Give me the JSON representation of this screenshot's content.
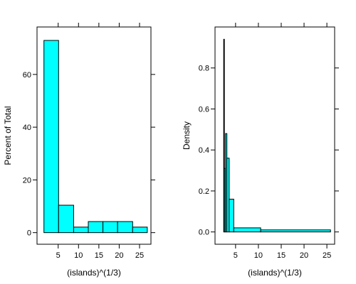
{
  "colors": {
    "fill": "#00ffff",
    "stroke": "#000000",
    "background": "#ffffff"
  },
  "chart_data": [
    {
      "type": "bar",
      "subtype": "histogram",
      "xlabel": "(islands)^(1/3)",
      "ylabel": "Percent of Total",
      "xlim": [
        -0.2,
        27.8
      ],
      "ylim": [
        -4.4,
        78
      ],
      "xticks": [
        5,
        10,
        15,
        20,
        25
      ],
      "yticks": [
        0,
        20,
        40,
        60
      ],
      "bins": [
        {
          "x0": 1.5,
          "x1": 5.1,
          "value": 72.9
        },
        {
          "x0": 5.1,
          "x1": 8.8,
          "value": 10.4
        },
        {
          "x0": 8.8,
          "x1": 12.4,
          "value": 2.1
        },
        {
          "x0": 12.4,
          "x1": 16.0,
          "value": 4.2
        },
        {
          "x0": 16.0,
          "x1": 19.6,
          "value": 4.2
        },
        {
          "x0": 19.6,
          "x1": 23.3,
          "value": 4.2
        },
        {
          "x0": 23.3,
          "x1": 26.9,
          "value": 2.1
        }
      ]
    },
    {
      "type": "bar",
      "subtype": "histogram",
      "xlabel": "(islands)^(1/3)",
      "ylabel": "Density",
      "xlim": [
        0.5,
        26.7
      ],
      "ylim": [
        -0.06,
        1.0
      ],
      "xticks": [
        5,
        10,
        15,
        20,
        25
      ],
      "yticks": [
        0.0,
        0.2,
        0.4,
        0.6,
        0.8
      ],
      "yticklabels": [
        "0.0",
        "0.2",
        "0.4",
        "0.6",
        "0.8"
      ],
      "bins": [
        {
          "x0": 2.4,
          "x1": 2.55,
          "value": 0.94
        },
        {
          "x0": 2.55,
          "x1": 2.8,
          "value": 0.31
        },
        {
          "x0": 2.8,
          "x1": 3.1,
          "value": 0.48
        },
        {
          "x0": 3.1,
          "x1": 3.6,
          "value": 0.36
        },
        {
          "x0": 3.6,
          "x1": 4.6,
          "value": 0.16
        },
        {
          "x0": 4.6,
          "x1": 10.5,
          "value": 0.02
        },
        {
          "x0": 10.5,
          "x1": 25.8,
          "value": 0.01
        }
      ]
    }
  ]
}
